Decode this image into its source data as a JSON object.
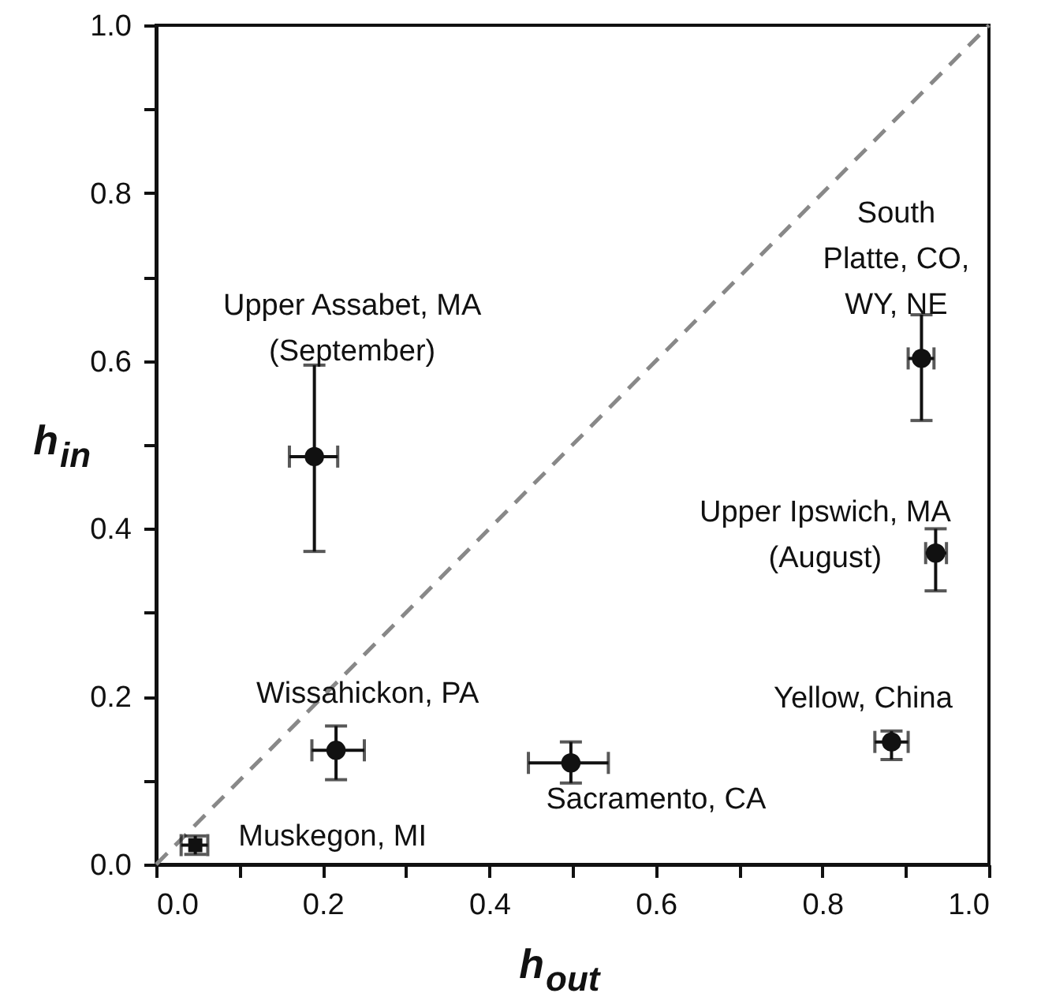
{
  "chart_data": {
    "type": "scatter",
    "xlabel": "h$_{out}$",
    "ylabel": "h$_{in}$",
    "xlim": [
      0,
      1
    ],
    "ylim": [
      0,
      1
    ],
    "xticks": [
      {
        "value": 0,
        "label": "0.0"
      },
      {
        "value": 0.1,
        "label": null
      },
      {
        "value": 0.2,
        "label": "0.2"
      },
      {
        "value": 0.3,
        "label": null
      },
      {
        "value": 0.4,
        "label": "0.4"
      },
      {
        "value": 0.5,
        "label": null
      },
      {
        "value": 0.6,
        "label": "0.6"
      },
      {
        "value": 0.7,
        "label": null
      },
      {
        "value": 0.8,
        "label": "0.8"
      },
      {
        "value": 0.9,
        "label": null
      },
      {
        "value": 1,
        "label": "1.0"
      }
    ],
    "yticks": [
      {
        "value": 0,
        "label": "0.0"
      },
      {
        "value": 0.1,
        "label": null
      },
      {
        "value": 0.2,
        "label": "0.2"
      },
      {
        "value": 0.3,
        "label": null
      },
      {
        "value": 0.4,
        "label": "0.4"
      },
      {
        "value": 0.5,
        "label": null
      },
      {
        "value": 0.6,
        "label": "0.6"
      },
      {
        "value": 0.7,
        "label": null
      },
      {
        "value": 0.8,
        "label": "0.8"
      },
      {
        "value": 0.9,
        "label": null
      },
      {
        "value": 1,
        "label": "1.0"
      }
    ],
    "grid": false,
    "series": [
      {
        "type": "line",
        "color": "#888888",
        "line_style": "dashed",
        "marker": "none",
        "x": [
          0,
          1
        ],
        "values": [
          0,
          1
        ]
      },
      {
        "color": "#111111",
        "marker": "circle",
        "x": [
          0.19,
          0.919,
          0.936,
          0.216,
          0.498,
          0.883
        ],
        "values": [
          0.486,
          0.603,
          0.371,
          0.136,
          0.121,
          0.146
        ],
        "errors": [
          [
            0.373,
            0.595
          ],
          [
            0.529,
            0.655
          ],
          [
            0.326,
            0.4
          ],
          [
            0.101,
            0.165
          ],
          [
            0.097,
            0.146
          ],
          [
            0.125,
            0.159
          ]
        ],
        "xerrors": [
          [
            0.16,
            0.218
          ],
          [
            0.903,
            0.934
          ],
          [
            0.924,
            0.949
          ],
          [
            0.187,
            0.25
          ],
          [
            0.447,
            0.543
          ],
          [
            0.863,
            0.903
          ]
        ]
      },
      {
        "color": "#111111",
        "marker": "square",
        "x": [
          0.047
        ],
        "values": [
          0.023
        ],
        "errors": [
          [
            0.012,
            0.034
          ]
        ],
        "xerrors": [
          [
            0.03,
            0.062
          ]
        ]
      }
    ],
    "annotations": [
      {
        "text": "Upper Assabet, MA\n(September)",
        "x": 0.19,
        "y": 0.486
      },
      {
        "text": "South\nPlatte, CO,\nWY, NE",
        "x": 0.919,
        "y": 0.603
      },
      {
        "text": "Upper Ipswich, MA\n(August)",
        "x": 0.936,
        "y": 0.371
      },
      {
        "text": "Wissahickon, PA",
        "x": 0.216,
        "y": 0.136
      },
      {
        "text": "Sacramento, CA",
        "x": 0.498,
        "y": 0.121
      },
      {
        "text": "Yellow, China",
        "x": 0.883,
        "y": 0.146
      },
      {
        "text": "Muskegon, MI",
        "x": 0.047,
        "y": 0.023
      }
    ]
  }
}
